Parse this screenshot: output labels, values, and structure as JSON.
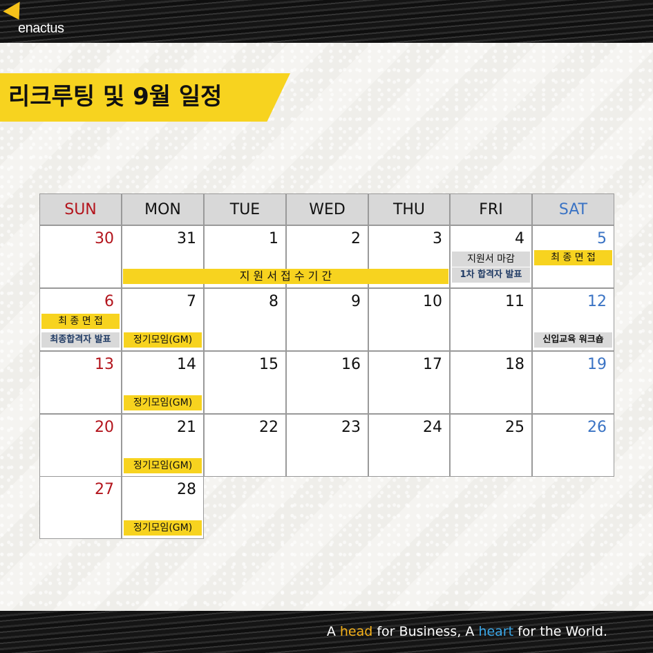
{
  "brand": {
    "logo_text": "enactus"
  },
  "title": "리크루팅 및 9월 일정",
  "footer": {
    "p1": "A ",
    "head": "head",
    "p2": " for Business, A ",
    "heart": "heart",
    "p3": " for the World."
  },
  "calendar": {
    "days": [
      "SUN",
      "MON",
      "TUE",
      "WED",
      "THU",
      "FRI",
      "SAT"
    ],
    "rows": [
      [
        "30",
        "31",
        "1",
        "2",
        "3",
        "4",
        "5"
      ],
      [
        "6",
        "7",
        "8",
        "9",
        "10",
        "11",
        "12"
      ],
      [
        "13",
        "14",
        "15",
        "16",
        "17",
        "18",
        "19"
      ],
      [
        "20",
        "21",
        "22",
        "23",
        "24",
        "25",
        "26"
      ],
      [
        "27",
        "28"
      ]
    ],
    "events": {
      "application_period": "지 원 서   접 수   기 간",
      "deadline": "지원서 마감",
      "first_result": "1차 합격자 발표",
      "final_interview_sat": "최 종  면 접",
      "final_interview_sun": "최 종  면 접",
      "final_result": "최종합격자 발표",
      "gm_7": "정기모임(GM)",
      "orientation": "신입교육 워크숍",
      "gm_14": "정기모임(GM)",
      "gm_21": "정기모임(GM)",
      "gm_28": "정기모임(GM)"
    }
  },
  "colors": {
    "accent_yellow": "#f7d31f",
    "sunday_red": "#b3141c",
    "saturday_blue": "#3a73c4"
  }
}
